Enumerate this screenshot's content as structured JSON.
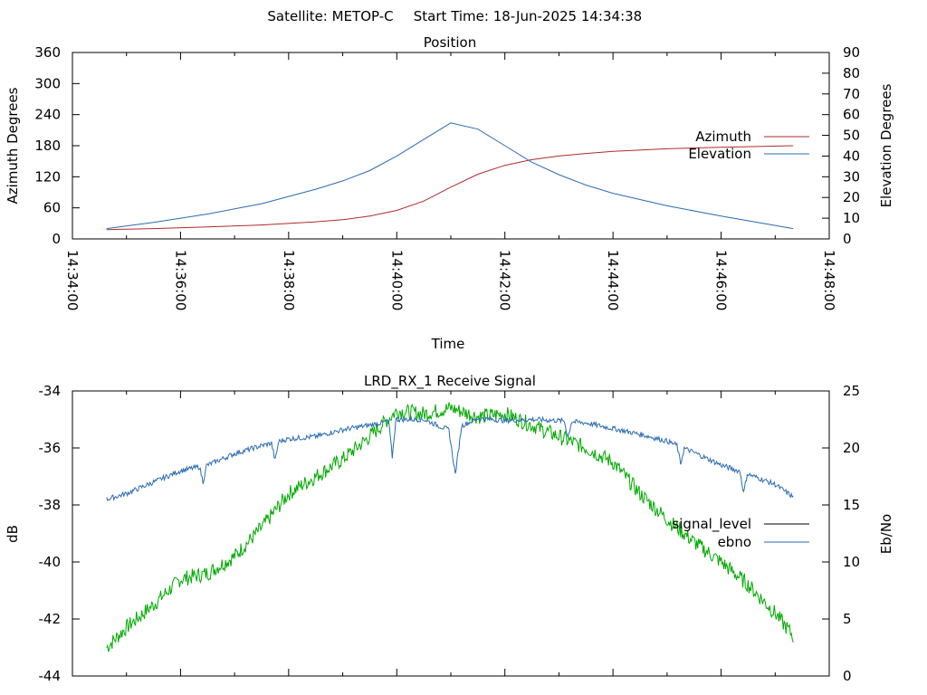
{
  "header": {
    "satellite_label": "Satellite: METOP-C",
    "start_time_label": "Start Time: 18-Jun-2025 14:34:38"
  },
  "colors": {
    "azimuth": "#b22a2a",
    "elevation": "#2a6bb2",
    "signal_level": "#00aa00",
    "ebno": "#2a6bb2",
    "legend_signal_level": "#000000"
  },
  "chart_data": [
    {
      "type": "line",
      "title": "Position",
      "xlabel": "Time",
      "ylabel": "Azimuth Degrees",
      "y2label": "Elevation Degrees",
      "xlim": [
        "14:34:00",
        "14:48:00"
      ],
      "ylim": [
        0,
        360
      ],
      "y2lim": [
        0,
        90
      ],
      "xticks": [
        "14:34:00",
        "14:36:00",
        "14:38:00",
        "14:40:00",
        "14:42:00",
        "14:44:00",
        "14:46:00",
        "14:48:00"
      ],
      "yticks": [
        "0",
        "60",
        "120",
        "180",
        "240",
        "300",
        "360"
      ],
      "y2ticks": [
        "0",
        "10",
        "20",
        "30",
        "40",
        "50",
        "60",
        "70",
        "80",
        "90"
      ],
      "legend_position": "right",
      "grid": false,
      "series": [
        {
          "name": "Azimuth",
          "axis": "y",
          "x": [
            "14:34:38",
            "14:35:30",
            "14:36:30",
            "14:37:30",
            "14:38:30",
            "14:39:00",
            "14:39:30",
            "14:40:00",
            "14:40:30",
            "14:41:00",
            "14:41:30",
            "14:42:00",
            "14:42:30",
            "14:43:00",
            "14:43:30",
            "14:44:00",
            "14:45:00",
            "14:46:00",
            "14:47:20"
          ],
          "values": [
            18,
            20,
            23,
            27,
            33,
            37,
            44,
            55,
            73,
            100,
            125,
            142,
            153,
            160,
            165,
            169,
            174,
            177,
            180
          ]
        },
        {
          "name": "Elevation",
          "axis": "y2",
          "x": [
            "14:34:38",
            "14:35:30",
            "14:36:30",
            "14:37:30",
            "14:38:30",
            "14:39:00",
            "14:39:30",
            "14:40:00",
            "14:40:30",
            "14:41:00",
            "14:41:30",
            "14:42:00",
            "14:42:30",
            "14:43:00",
            "14:43:30",
            "14:44:00",
            "14:45:00",
            "14:46:00",
            "14:47:20"
          ],
          "values": [
            5,
            8,
            12,
            17,
            24,
            28,
            33,
            40,
            48,
            56,
            53,
            45,
            37,
            31,
            26,
            22,
            16,
            11,
            5
          ]
        }
      ]
    },
    {
      "type": "line",
      "title": "LRD_RX_1 Receive Signal",
      "ylabel": "dB",
      "y2label": "Eb/No",
      "ylim": [
        -44,
        -34
      ],
      "y2lim": [
        0,
        25
      ],
      "yticks": [
        "-34",
        "-36",
        "-38",
        "-40",
        "-42",
        "-44"
      ],
      "y2ticks": [
        "0",
        "5",
        "10",
        "15",
        "20",
        "25"
      ],
      "legend_position": "right",
      "grid": false,
      "series": [
        {
          "name": "signal_level",
          "axis": "y",
          "x": [
            "14:34:38",
            "14:35:00",
            "14:35:30",
            "14:36:00",
            "14:36:30",
            "14:37:00",
            "14:37:30",
            "14:38:00",
            "14:38:30",
            "14:39:00",
            "14:39:30",
            "14:40:00",
            "14:40:30",
            "14:41:00",
            "14:41:30",
            "14:42:00",
            "14:42:30",
            "14:43:00",
            "14:43:30",
            "14:44:00",
            "14:44:30",
            "14:45:00",
            "14:45:30",
            "14:46:00",
            "14:46:30",
            "14:47:00",
            "14:47:20"
          ],
          "values": [
            -43.0,
            -42.3,
            -41.5,
            -40.6,
            -40.4,
            -39.8,
            -38.8,
            -37.6,
            -37.0,
            -36.4,
            -35.6,
            -34.7,
            -34.8,
            -34.6,
            -34.9,
            -34.8,
            -35.2,
            -35.6,
            -36.0,
            -36.5,
            -37.6,
            -38.5,
            -39.3,
            -40.0,
            -40.8,
            -41.8,
            -42.6
          ]
        },
        {
          "name": "ebno",
          "axis": "y2",
          "x": [
            "14:34:38",
            "14:35:00",
            "14:35:30",
            "14:36:00",
            "14:36:30",
            "14:37:00",
            "14:37:30",
            "14:38:00",
            "14:38:30",
            "14:39:00",
            "14:39:30",
            "14:40:00",
            "14:40:30",
            "14:41:00",
            "14:41:30",
            "14:42:00",
            "14:42:30",
            "14:43:00",
            "14:43:30",
            "14:44:00",
            "14:44:30",
            "14:45:00",
            "14:45:30",
            "14:46:00",
            "14:46:30",
            "14:47:00",
            "14:47:20"
          ],
          "values": [
            15.5,
            16.0,
            17.0,
            18.0,
            18.5,
            19.5,
            20.2,
            20.8,
            21.0,
            21.6,
            22.0,
            22.5,
            22.5,
            21.5,
            22.6,
            22.4,
            22.5,
            22.4,
            22.2,
            21.7,
            21.2,
            20.6,
            19.6,
            18.5,
            17.7,
            16.8,
            15.7
          ]
        }
      ]
    }
  ]
}
